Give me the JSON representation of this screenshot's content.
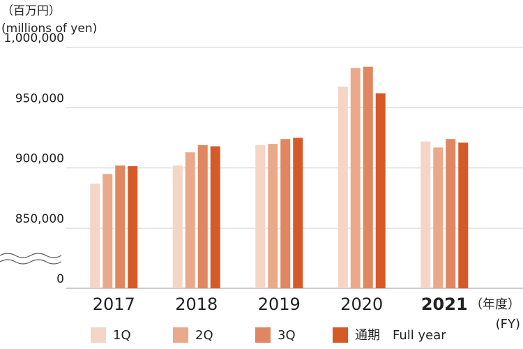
{
  "chart_data": {
    "type": "bar",
    "title": "（百万円）",
    "subtitle": "(millions of yen)",
    "x_label": "（年度）",
    "x_label_en": "(FY)",
    "categories": [
      "2017",
      "2018",
      "2019",
      "2020",
      "2021"
    ],
    "bold_category": "2021",
    "series": [
      {
        "name": "1Q",
        "color": "#f5d5c5",
        "values": [
          887000,
          902000,
          919000,
          967500,
          922000
        ]
      },
      {
        "name": "2Q",
        "color": "#eaa98a",
        "values": [
          895000,
          913000,
          920000,
          983000,
          917000
        ]
      },
      {
        "name": "3Q",
        "color": "#e08660",
        "values": [
          902000,
          919000,
          924000,
          984000,
          924000
        ]
      },
      {
        "name": "通期　Full year",
        "color": "#d55a28",
        "values": [
          901500,
          918000,
          925000,
          962000,
          921000
        ]
      }
    ],
    "ylim": [
      0,
      1000000
    ],
    "axis_break": [
      0,
      850000
    ],
    "yticks": [
      {
        "value": 0,
        "label": "0"
      },
      {
        "value": 850000,
        "label": "850,000"
      },
      {
        "value": 900000,
        "label": "900,000"
      },
      {
        "value": 950000,
        "label": "950,000"
      },
      {
        "value": 1000000,
        "label": "1,000,000"
      }
    ],
    "grid": true
  }
}
